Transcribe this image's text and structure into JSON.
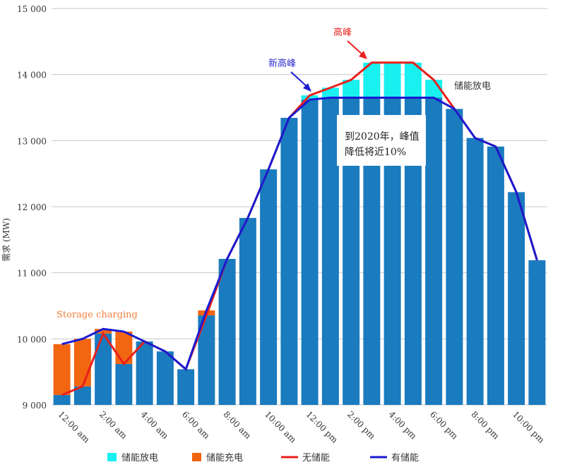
{
  "chart_data": {
    "type": "bar",
    "ylabel": "需求 (MW)",
    "ylim": [
      9000,
      15000
    ],
    "yticks": [
      9000,
      10000,
      11000,
      12000,
      13000,
      14000,
      15000
    ],
    "ytick_labels": [
      "9 000",
      "10 000",
      "11 000",
      "12 000",
      "13 000",
      "14 000",
      "15 000"
    ],
    "categories": [
      "12am",
      "1am",
      "2am",
      "3am",
      "4am",
      "5am",
      "6am",
      "7am",
      "8am",
      "9am",
      "10am",
      "11am",
      "12pm",
      "1pm",
      "2pm",
      "3pm",
      "4pm",
      "5pm",
      "6pm",
      "7pm",
      "8pm",
      "9pm",
      "10pm",
      "11pm"
    ],
    "xtick_labels": [
      "12:00 am",
      "2:00 am",
      "4:00 am",
      "6:00 am",
      "8:00 am",
      "10:00 am",
      "12:00 pm",
      "2:00 pm",
      "4:00 pm",
      "6:00 pm",
      "8:00 pm",
      "10:00 pm"
    ],
    "series": [
      {
        "name": "无储能",
        "values": [
          9150,
          9280,
          10080,
          9620,
          9960,
          9810,
          9540,
          10355,
          11210,
          11830,
          12565,
          13345,
          13685,
          13800,
          13920,
          14180,
          14180,
          14180,
          13920,
          13480,
          13040,
          12910,
          12220,
          11190
        ]
      },
      {
        "name": "有储能",
        "values": [
          9920,
          10000,
          10150,
          10110,
          9960,
          9810,
          9540,
          10430,
          11210,
          11830,
          12565,
          13345,
          13620,
          13650,
          13650,
          13650,
          13650,
          13650,
          13650,
          13480,
          13040,
          12910,
          12220,
          11190
        ]
      }
    ],
    "legend": [
      {
        "label": "储能放电",
        "type": "box",
        "color": "#19f0f0"
      },
      {
        "label": "储能充电",
        "type": "box",
        "color": "#f26511"
      },
      {
        "label": "无储能",
        "type": "line",
        "color": "#e8201c"
      },
      {
        "label": "有储能",
        "type": "line",
        "color": "#1a1ad0"
      }
    ],
    "legend_position": "bottom",
    "annotations": {
      "charging": "Storage charging",
      "new_peak": "新高峰",
      "peak": "高峰",
      "discharge": "储能放电",
      "box_line1": "到2020年，峰值",
      "box_line2": "降低将近10%"
    },
    "colors": {
      "bar": "#1a7bbf",
      "grid": "#c8c8c8"
    }
  }
}
